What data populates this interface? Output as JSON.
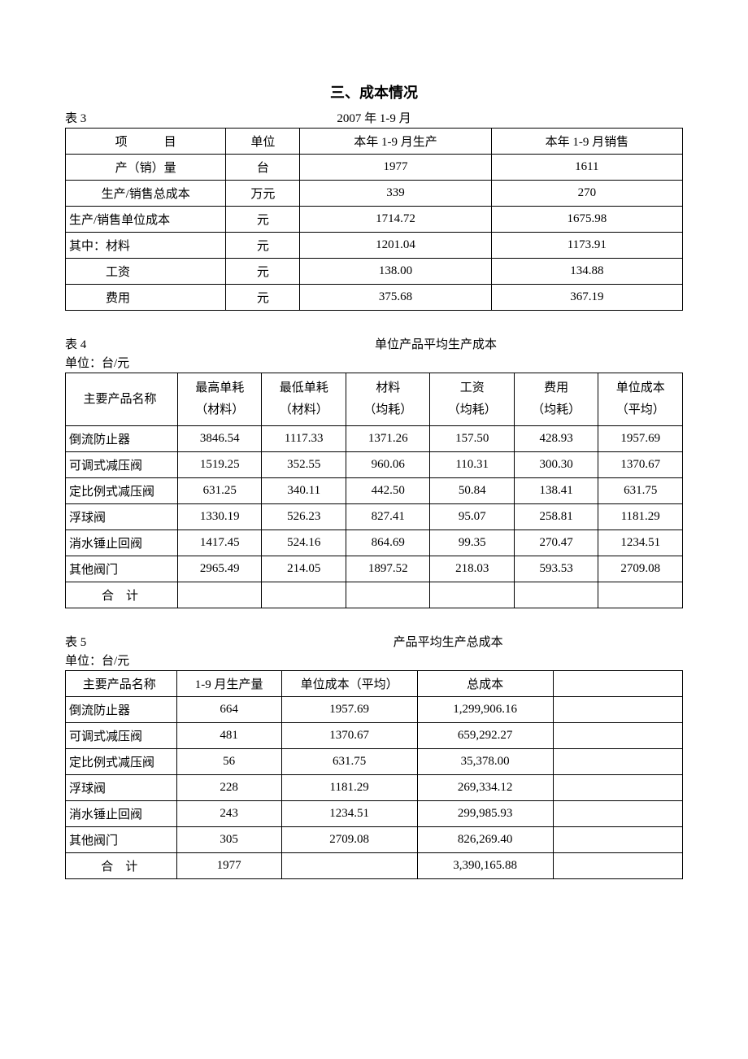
{
  "section_title": "三、成本情况",
  "table3": {
    "label": "表 3",
    "period": "2007 年 1-9 月",
    "headers": {
      "item": "项　　　目",
      "unit": "单位",
      "production": "本年 1-9 月生产",
      "sales": "本年 1-9 月销售"
    },
    "rows": [
      {
        "item": "产（销）量",
        "unit": "台",
        "production": "1977",
        "sales": "1611",
        "align": "center"
      },
      {
        "item": "生产/销售总成本",
        "unit": "万元",
        "production": "339",
        "sales": "270",
        "align": "center"
      },
      {
        "item": "生产/销售单位成本",
        "unit": "元",
        "production": "1714.72",
        "sales": "1675.98",
        "align": "left"
      },
      {
        "item": "其中：材料",
        "unit": "元",
        "production": "1201.04",
        "sales": "1173.91",
        "align": "left"
      },
      {
        "item": "　　　工资",
        "unit": "元",
        "production": "138.00",
        "sales": "134.88",
        "align": "left"
      },
      {
        "item": "　　　费用",
        "unit": "元",
        "production": "375.68",
        "sales": "367.19",
        "align": "left"
      }
    ]
  },
  "table4": {
    "label": "表 4",
    "title": "单位产品平均生产成本",
    "unit_label": "单位：台/元",
    "headers": {
      "name": "主要产品名称",
      "max": "最高单耗",
      "max_sub": "（材料）",
      "min": "最低单耗",
      "min_sub": "（材料）",
      "material": "材料",
      "material_sub": "（均耗）",
      "wage": "工资",
      "wage_sub": "（均耗）",
      "expense": "费用",
      "expense_sub": "（均耗）",
      "unit_cost": "单位成本",
      "unit_cost_sub": "（平均）"
    },
    "rows": [
      {
        "name": "倒流防止器",
        "max": "3846.54",
        "min": "1117.33",
        "material": "1371.26",
        "wage": "157.50",
        "expense": "428.93",
        "unit_cost": "1957.69"
      },
      {
        "name": "可调式减压阀",
        "max": "1519.25",
        "min": "352.55",
        "material": "960.06",
        "wage": "110.31",
        "expense": "300.30",
        "unit_cost": "1370.67"
      },
      {
        "name": "定比例式减压阀",
        "max": "631.25",
        "min": "340.11",
        "material": "442.50",
        "wage": "50.84",
        "expense": "138.41",
        "unit_cost": "631.75"
      },
      {
        "name": "浮球阀",
        "max": "1330.19",
        "min": "526.23",
        "material": "827.41",
        "wage": "95.07",
        "expense": "258.81",
        "unit_cost": "1181.29"
      },
      {
        "name": "消水锤止回阀",
        "max": "1417.45",
        "min": "524.16",
        "material": "864.69",
        "wage": "99.35",
        "expense": "270.47",
        "unit_cost": "1234.51"
      },
      {
        "name": "其他阀门",
        "max": "2965.49",
        "min": "214.05",
        "material": "1897.52",
        "wage": "218.03",
        "expense": "593.53",
        "unit_cost": "2709.08"
      }
    ],
    "total_label": "合　计"
  },
  "table5": {
    "label": "表 5",
    "title": "产品平均生产总成本",
    "unit_label": "单位：台/元",
    "headers": {
      "name": "主要产品名称",
      "qty": "1-9 月生产量",
      "unit_cost": "单位成本（平均）",
      "total": "总成本"
    },
    "rows": [
      {
        "name": "倒流防止器",
        "qty": "664",
        "unit_cost": "1957.69",
        "total": "1,299,906.16"
      },
      {
        "name": "可调式减压阀",
        "qty": "481",
        "unit_cost": "1370.67",
        "total": "659,292.27"
      },
      {
        "name": "定比例式减压阀",
        "qty": "56",
        "unit_cost": "631.75",
        "total": "35,378.00"
      },
      {
        "name": "浮球阀",
        "qty": "228",
        "unit_cost": "1181.29",
        "total": "269,334.12"
      },
      {
        "name": "消水锤止回阀",
        "qty": "243",
        "unit_cost": "1234.51",
        "total": "299,985.93"
      },
      {
        "name": "其他阀门",
        "qty": "305",
        "unit_cost": "2709.08",
        "total": "826,269.40"
      }
    ],
    "total_label": "合　计",
    "total_qty": "1977",
    "total_sum": "3,390,165.88"
  }
}
